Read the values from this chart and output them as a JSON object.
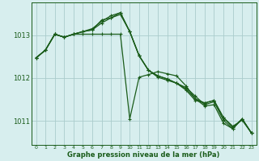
{
  "background_color": "#d7eeee",
  "grid_color": "#aacccc",
  "line_color": "#1a5c1a",
  "xlabel": "Graphe pression niveau de la mer (hPa)",
  "yticks": [
    1011,
    1012,
    1013
  ],
  "xtick_labels": [
    "0",
    "1",
    "2",
    "3",
    "4",
    "5",
    "6",
    "7",
    "8",
    "9",
    "10",
    "11",
    "12",
    "13",
    "14",
    "15",
    "16",
    "17",
    "18",
    "19",
    "20",
    "21",
    "22",
    "23"
  ],
  "xlim": [
    -0.5,
    23.5
  ],
  "ylim": [
    1010.45,
    1013.75
  ],
  "series": [
    [
      1012.47,
      1012.65,
      1013.02,
      1012.95,
      1013.02,
      1013.02,
      1013.02,
      1013.02,
      1013.02,
      1013.02,
      1011.05,
      1012.02,
      1012.08,
      1012.15,
      1012.1,
      1012.05,
      1011.82,
      1011.52,
      1011.42,
      1011.48,
      1011.08,
      1010.88,
      1011.02,
      1010.72
    ],
    [
      1012.47,
      1012.65,
      1013.02,
      1012.95,
      1013.02,
      1013.08,
      1013.15,
      1013.32,
      1013.45,
      1013.52,
      1013.08,
      1012.52,
      1012.18,
      1012.02,
      1011.95,
      1011.88,
      1011.72,
      1011.48,
      1011.42,
      1011.48,
      1011.08,
      1010.85,
      1011.05,
      1010.72
    ],
    [
      1012.47,
      1012.65,
      1013.02,
      1012.95,
      1013.02,
      1013.08,
      1013.12,
      1013.28,
      1013.4,
      1013.48,
      1013.08,
      1012.52,
      1012.18,
      1012.05,
      1011.98,
      1011.88,
      1011.75,
      1011.52,
      1011.35,
      1011.38,
      1010.95,
      1010.82,
      1011.05,
      1010.72
    ],
    [
      1012.47,
      1012.65,
      1013.02,
      1012.95,
      1013.02,
      1013.08,
      1013.12,
      1013.35,
      1013.4,
      1013.52,
      1013.08,
      1012.52,
      1012.18,
      1012.05,
      1011.98,
      1011.88,
      1011.78,
      1011.58,
      1011.38,
      1011.45,
      1011.02,
      1010.82,
      1011.05,
      1010.72
    ]
  ]
}
